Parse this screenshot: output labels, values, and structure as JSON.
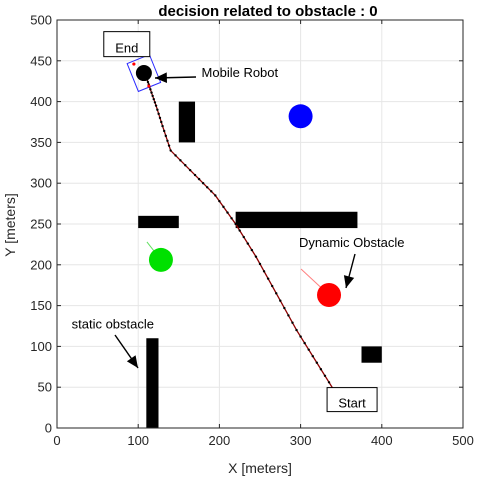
{
  "chart_data": {
    "type": "scatter",
    "title": "decision related to obstacle  : 0",
    "xlabel": "X [meters]",
    "ylabel": "Y [meters]",
    "xlim": [
      0,
      500
    ],
    "ylim": [
      0,
      500
    ],
    "xticks": [
      "0",
      "100",
      "200",
      "300",
      "400",
      "500"
    ],
    "yticks": [
      "0",
      "50",
      "100",
      "150",
      "200",
      "250",
      "300",
      "350",
      "400",
      "450",
      "500"
    ],
    "grid": true,
    "static_obstacles": [
      {
        "x": [
          100,
          150
        ],
        "y": [
          245,
          260
        ]
      },
      {
        "x": [
          150,
          170
        ],
        "y": [
          350,
          400
        ]
      },
      {
        "x": [
          220,
          370
        ],
        "y": [
          245,
          265
        ]
      },
      {
        "x": [
          110,
          125
        ],
        "y": [
          0,
          110
        ]
      },
      {
        "x": [
          375,
          400
        ],
        "y": [
          80,
          100
        ]
      }
    ],
    "path": {
      "color": "#8b0000",
      "x": [
        345,
        320,
        295,
        270,
        245,
        220,
        195,
        170,
        140,
        130,
        122,
        115,
        110
      ],
      "y": [
        40,
        80,
        120,
        165,
        210,
        250,
        285,
        310,
        340,
        370,
        395,
        415,
        430
      ]
    },
    "robot": {
      "x": 107,
      "y": 435,
      "color": "#000000",
      "frame_color": "#2b2bff"
    },
    "dynamic_obstacles": [
      {
        "x": 300,
        "y": 382,
        "color": "#0000ff"
      },
      {
        "x": 335,
        "y": 163,
        "color": "#ff0000"
      },
      {
        "x": 128,
        "y": 206,
        "color": "#00e000"
      }
    ],
    "annotations": [
      {
        "text": "End",
        "boxed": true,
        "x": 65,
        "y": 460
      },
      {
        "text": "Mobile Robot",
        "boxed": false,
        "x": 178,
        "y": 430
      },
      {
        "text": "Dynamic Obstacle",
        "boxed": false,
        "x": 298,
        "y": 222
      },
      {
        "text": "static obstacle",
        "boxed": false,
        "x": 18,
        "y": 122
      },
      {
        "text": "Start",
        "boxed": true,
        "x": 340,
        "y": 25
      }
    ]
  }
}
